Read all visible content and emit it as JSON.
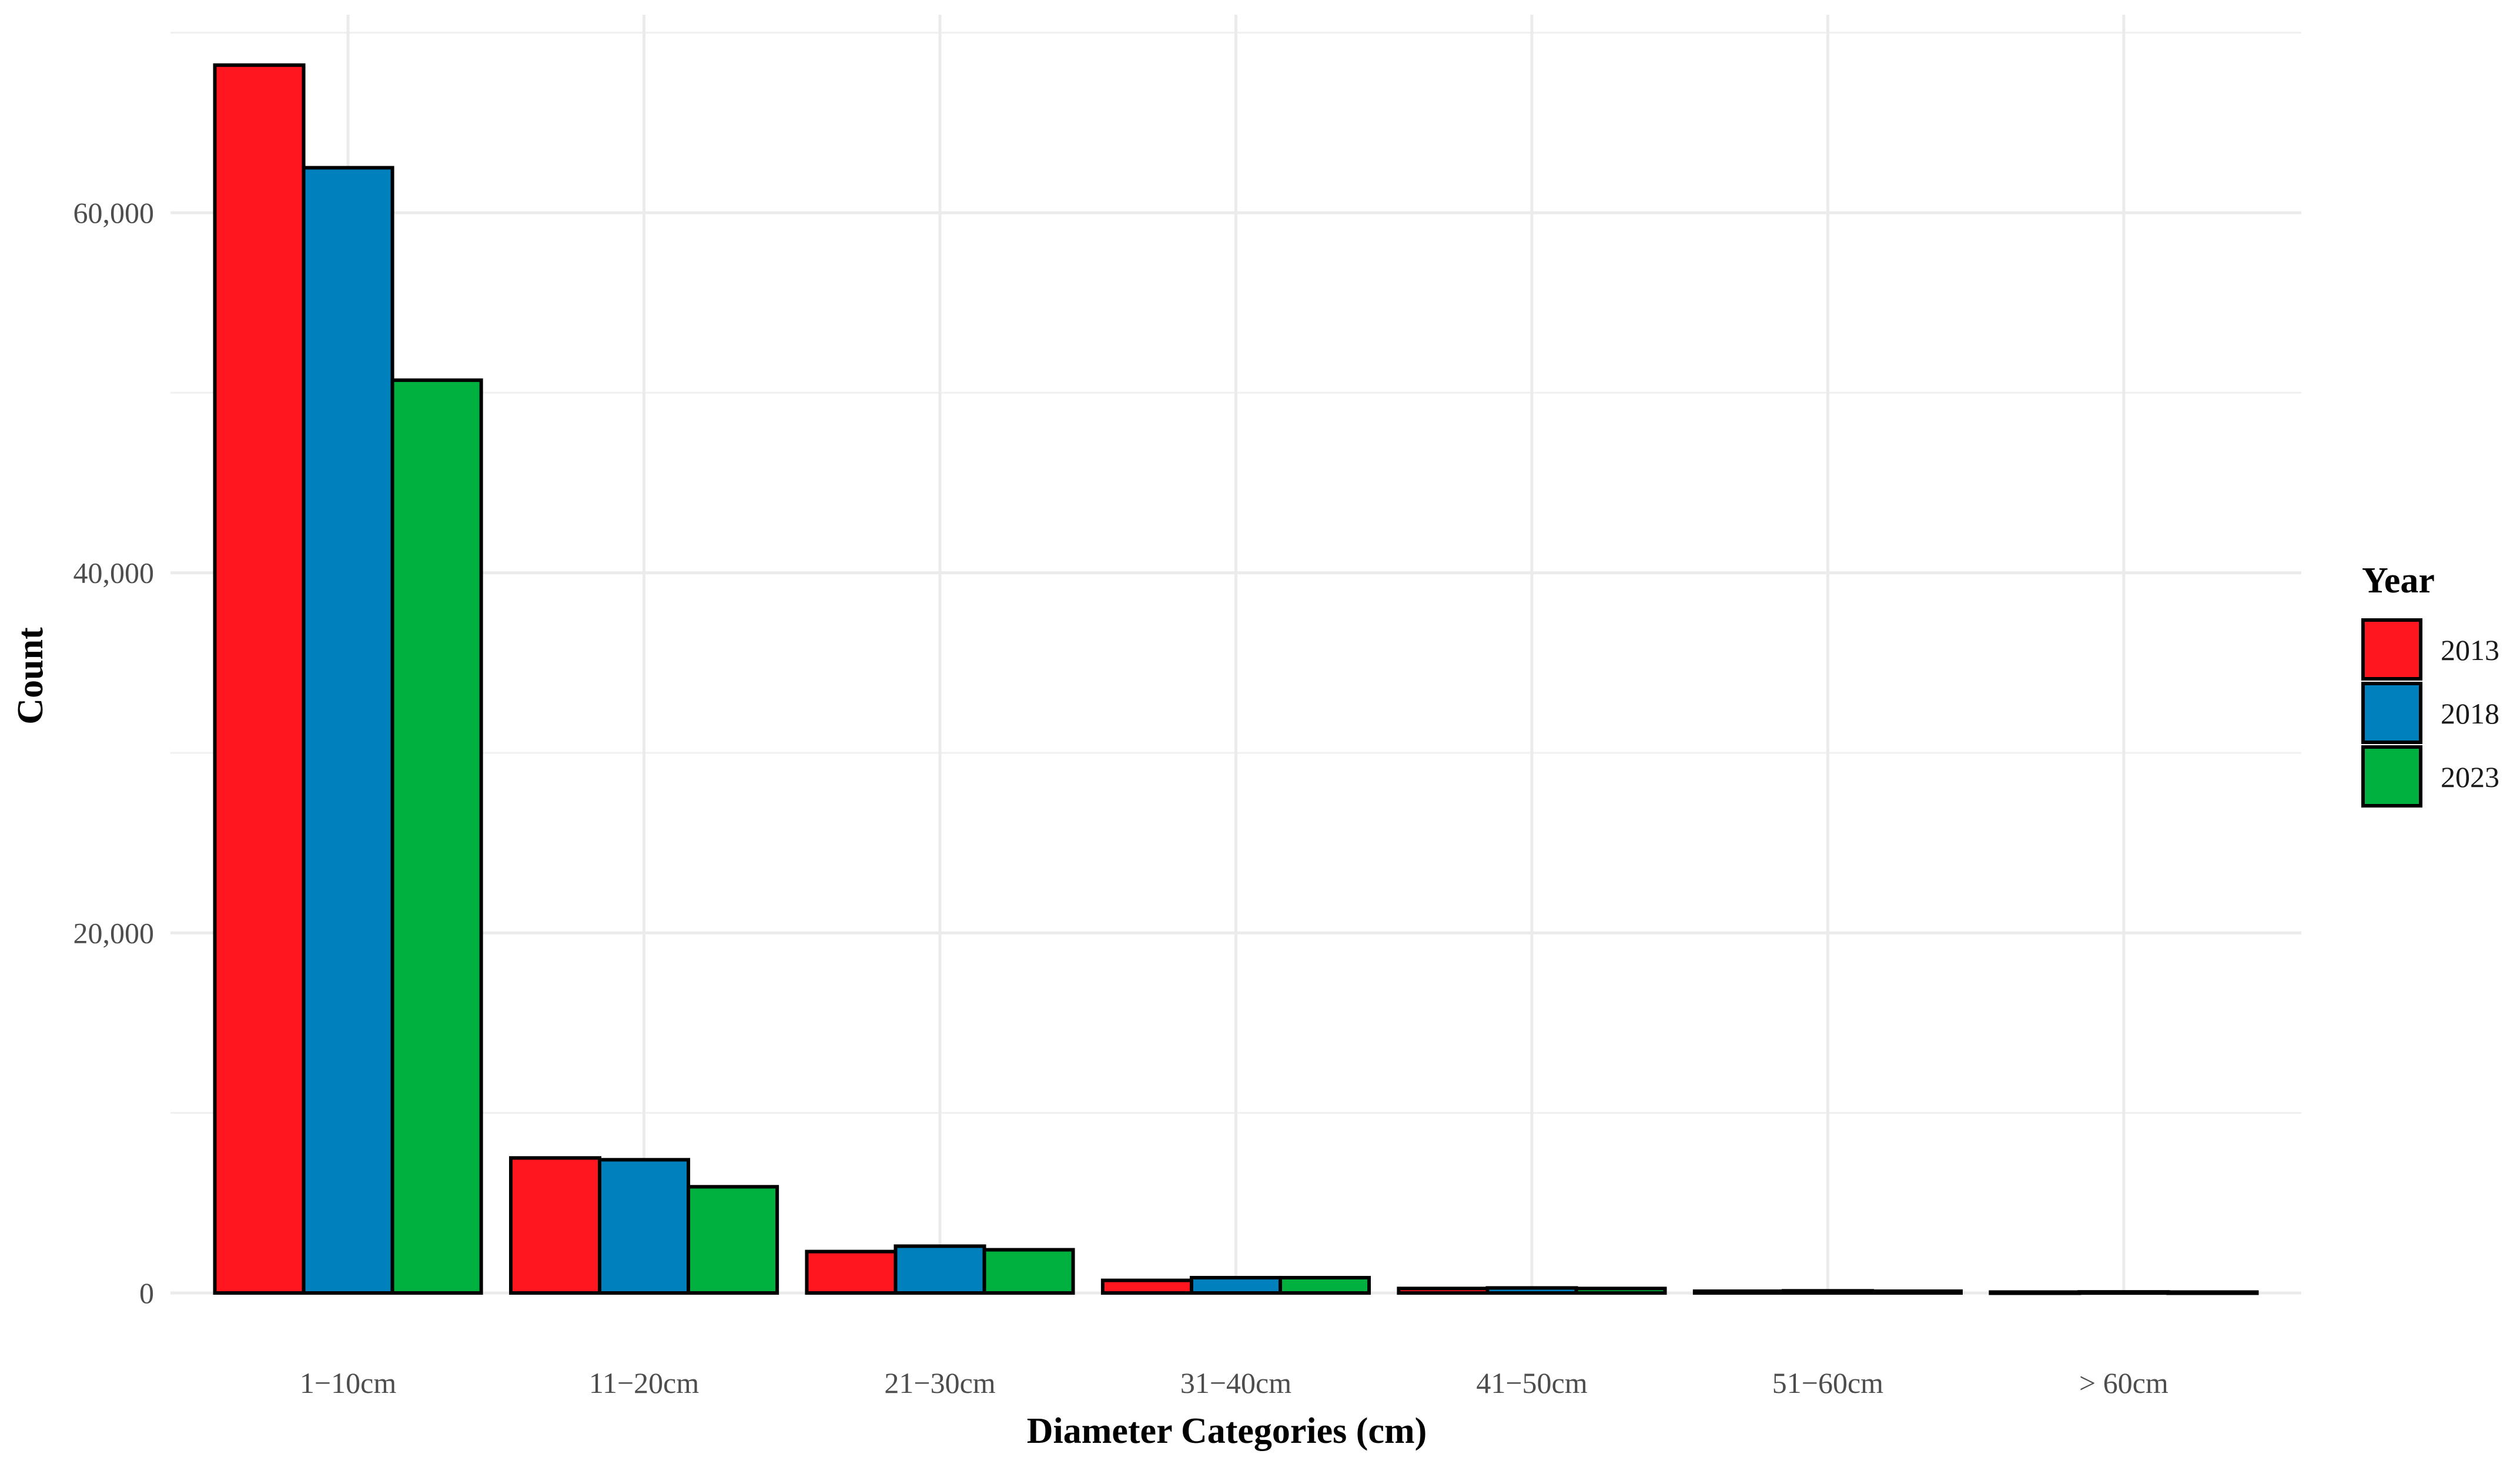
{
  "chart_data": {
    "type": "bar",
    "categories": [
      "1−10cm",
      "11−20cm",
      "21−30cm",
      "31−40cm",
      "41−50cm",
      "51−60cm",
      "> 60cm"
    ],
    "series": [
      {
        "name": "2013",
        "color": "#FF161E",
        "values": [
          68200,
          7500,
          2300,
          700,
          250,
          100,
          50
        ]
      },
      {
        "name": "2018",
        "color": "#0080BC",
        "values": [
          62500,
          7400,
          2600,
          850,
          280,
          120,
          60
        ]
      },
      {
        "name": "2023",
        "color": "#00B140",
        "values": [
          50700,
          5900,
          2400,
          850,
          250,
          100,
          50
        ]
      }
    ],
    "xlabel": "Diameter Categories (cm)",
    "ylabel": "Count",
    "ylim": [
      0,
      71000
    ],
    "yticks": [
      0,
      20000,
      40000,
      60000
    ],
    "ytick_labels": [
      "0",
      "20,000",
      "40,000",
      "60,000"
    ],
    "legend": {
      "title": "Year",
      "position": "right"
    },
    "grid": true
  }
}
